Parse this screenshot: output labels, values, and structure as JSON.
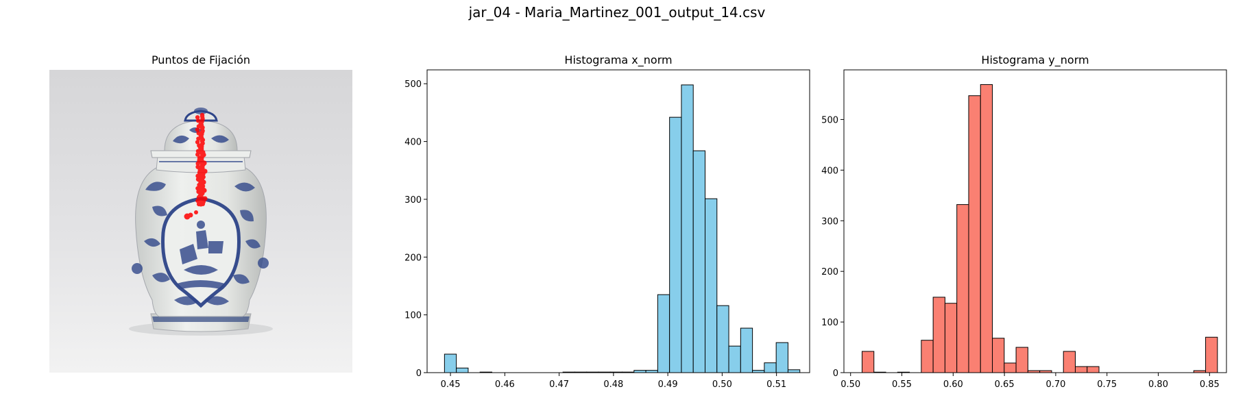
{
  "suptitle": "jar_04 - Maria_Martinez_001_output_14.csv",
  "image_panel": {
    "title": "Puntos de Fijación",
    "image_subject": "blue-and-white porcelain ginger jar with lid",
    "fixation_color": "#ff0000"
  },
  "colors": {
    "x_bars": "#87ceeb",
    "y_bars": "#fa8072",
    "edge": "#000000"
  },
  "chart_data": [
    {
      "type": "bar",
      "title": "Histograma x_norm",
      "xlabel": "",
      "ylabel": "",
      "xlim": [
        0.4457,
        0.5161
      ],
      "ylim": [
        0,
        524
      ],
      "xticks": [
        0.45,
        0.46,
        0.47,
        0.48,
        0.49,
        0.5,
        0.51
      ],
      "xtick_labels": [
        "0.45",
        "0.46",
        "0.47",
        "0.48",
        "0.49",
        "0.50",
        "0.51"
      ],
      "yticks": [
        0,
        100,
        200,
        300,
        400,
        500
      ],
      "ytick_labels": [
        "0",
        "100",
        "200",
        "300",
        "400",
        "500"
      ],
      "bin_start": 0.4489,
      "bin_width": 0.00218,
      "values": [
        32,
        8,
        0,
        1,
        0,
        0,
        0,
        0,
        0,
        0,
        1,
        1,
        1,
        1,
        1,
        1,
        4,
        4,
        135,
        442,
        498,
        384,
        301,
        116,
        46,
        77,
        4,
        17,
        52,
        5
      ],
      "grid": false,
      "color": "#87ceeb"
    },
    {
      "type": "bar",
      "title": "Histograma y_norm",
      "xlabel": "",
      "ylabel": "",
      "xlim": [
        0.4935,
        0.8665
      ],
      "ylim": [
        0,
        598
      ],
      "xticks": [
        0.5,
        0.55,
        0.6,
        0.65,
        0.7,
        0.75,
        0.8,
        0.85
      ],
      "xtick_labels": [
        "0.50",
        "0.55",
        "0.60",
        "0.65",
        "0.70",
        "0.75",
        "0.80",
        "0.85"
      ],
      "yticks": [
        0,
        100,
        200,
        300,
        400,
        500
      ],
      "ytick_labels": [
        "0",
        "100",
        "200",
        "300",
        "400",
        "500"
      ],
      "bin_start": 0.5112,
      "bin_width": 0.01155,
      "values": [
        42,
        1,
        0,
        1,
        0,
        64,
        149,
        137,
        332,
        547,
        569,
        68,
        19,
        50,
        4,
        4,
        0,
        42,
        12,
        12,
        0,
        0,
        0,
        0,
        0,
        0,
        0,
        0,
        4,
        70
      ],
      "grid": false,
      "color": "#fa8072"
    }
  ]
}
